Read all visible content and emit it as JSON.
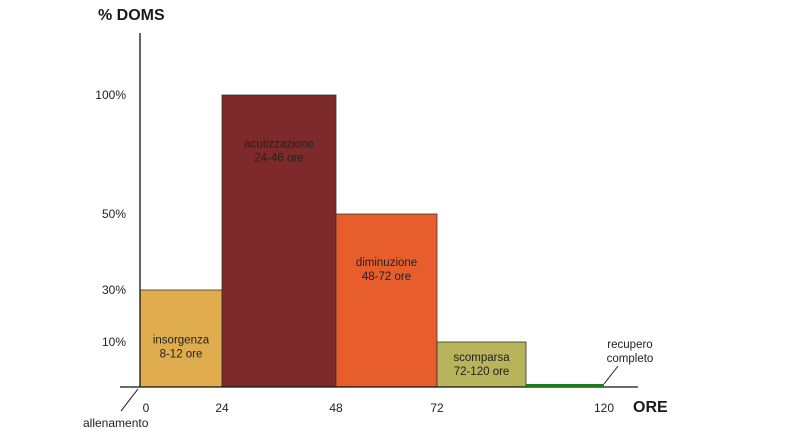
{
  "chart_data": {
    "type": "bar",
    "ylabel": "% DOMS",
    "xlabel": "ORE",
    "x_ticks": [
      "0",
      "24",
      "48",
      "72",
      "120"
    ],
    "x_tick_values": [
      0,
      24,
      48,
      72,
      120
    ],
    "y_ticks": [
      "10%",
      "30%",
      "50%",
      "100%"
    ],
    "y_tick_values": [
      10,
      30,
      50,
      100
    ],
    "origin_label": "allenamento",
    "bars": [
      {
        "name": "insorgenza",
        "range": "8-12 ore",
        "x_start": 0,
        "x_end": 24,
        "value": 30,
        "color": "#e0ad4e"
      },
      {
        "name": "acutizzazione",
        "range": "24-46 ore",
        "x_start": 24,
        "x_end": 48,
        "value": 100,
        "color": "#7e2a2a"
      },
      {
        "name": "diminuzione",
        "range": "48-72 ore",
        "x_start": 48,
        "x_end": 72,
        "value": 50,
        "color": "#e85d2c"
      },
      {
        "name": "scomparsa",
        "range": "72-120 ore",
        "x_start": 72,
        "x_end": 96,
        "value": 10,
        "color": "#b7b45c"
      }
    ],
    "recovery": {
      "label_line1": "recupero",
      "label_line2": "completo",
      "x_start": 96,
      "x_end": 120,
      "value": 0,
      "color": "#1f7a1f"
    }
  }
}
